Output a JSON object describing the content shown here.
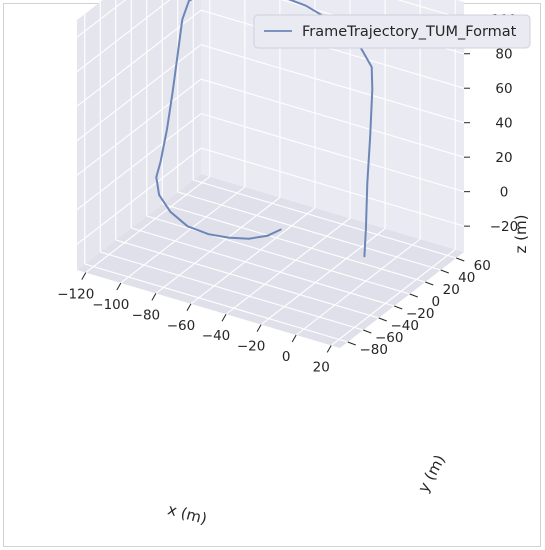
{
  "chart_data": {
    "type": "line",
    "projection": "3d",
    "legend": {
      "position": "top-right",
      "entries": [
        "FrameTrajectory_TUM_Format"
      ]
    },
    "series": [
      {
        "name": "FrameTrajectory_TUM_Format",
        "color": "#6d86b8",
        "points": [
          [
            -46,
            -6,
            -17
          ],
          [
            -50,
            -14,
            -19
          ],
          [
            -57,
            -22,
            -20
          ],
          [
            -66,
            -28,
            -20
          ],
          [
            -76,
            -31,
            -20
          ],
          [
            -88,
            -31,
            -19
          ],
          [
            -100,
            -26,
            -16
          ],
          [
            -110,
            -18,
            -12
          ],
          [
            -116,
            -8,
            -7
          ],
          [
            -118,
            2,
            -2
          ],
          [
            -117,
            8,
            15
          ],
          [
            -116,
            13,
            35
          ],
          [
            -115,
            17,
            55
          ],
          [
            -114,
            21,
            75
          ],
          [
            -112,
            25,
            85
          ],
          [
            -102,
            31,
            93
          ],
          [
            -86,
            36,
            97
          ],
          [
            -68,
            37,
            98
          ],
          [
            -50,
            36,
            97
          ],
          [
            -32,
            32,
            94
          ],
          [
            -16,
            27,
            88
          ],
          [
            -6,
            21,
            80
          ],
          [
            -3,
            15,
            70
          ],
          [
            -2,
            10,
            45
          ],
          [
            -1,
            4,
            20
          ],
          [
            0,
            0,
            -5
          ],
          [
            0,
            -2,
            -20
          ]
        ]
      }
    ],
    "axes": {
      "x": {
        "label": "x (m)",
        "ticks": [
          -120,
          -100,
          -80,
          -60,
          -40,
          -20,
          0,
          20
        ],
        "range": [
          -125,
          25
        ]
      },
      "y": {
        "label": "y (m)",
        "ticks": [
          -80,
          -60,
          -40,
          -20,
          0,
          20,
          40,
          60
        ],
        "range": [
          -90,
          70
        ]
      },
      "z": {
        "label": "z (m)",
        "ticks": [
          -20,
          0,
          20,
          40,
          60,
          80,
          100
        ],
        "range": [
          -35,
          110
        ]
      }
    },
    "grid": true,
    "style": {
      "pane": "#eaeaf2",
      "pane_side": "#e5e5ee",
      "pane_floor": "#e0e0ea",
      "grid": "#ffffff",
      "text": "#262626"
    }
  }
}
